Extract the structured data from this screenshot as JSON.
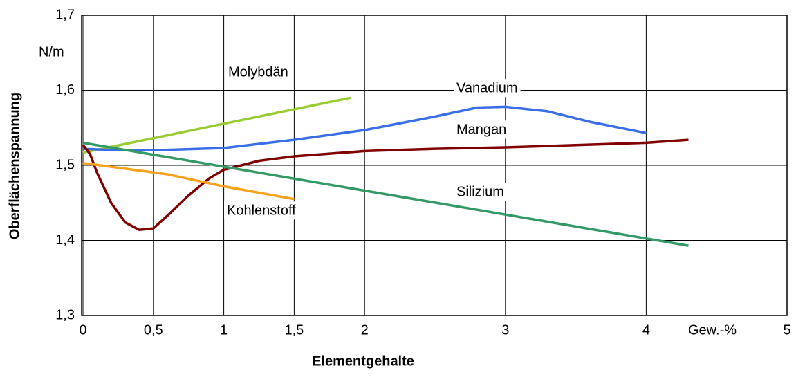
{
  "chart_data": {
    "type": "line",
    "xlabel": "Elementgehalte",
    "ylabel": "Oberflächenspannung",
    "y_unit": "N/m",
    "x_unit": "Gew.-%",
    "xlim": [
      0,
      5
    ],
    "ylim": [
      1.3,
      1.7
    ],
    "xticks": [
      0,
      {
        "value": 0.5,
        "label": "0,5"
      },
      1,
      {
        "value": 1.5,
        "label": "1,5"
      },
      2,
      3,
      4,
      5
    ],
    "yticks": [
      {
        "value": 1.3,
        "label": "1,3"
      },
      {
        "value": 1.4,
        "label": "1,4"
      },
      {
        "value": 1.5,
        "label": "1,5"
      },
      {
        "value": 1.6,
        "label": "1,6"
      },
      {
        "value": 1.7,
        "label": "1,7"
      }
    ],
    "grid": true,
    "series": [
      {
        "name": "Molybdän",
        "color": "#99cc33",
        "x": [
          0,
          1.9
        ],
        "values": [
          1.517,
          1.59
        ]
      },
      {
        "name": "Vanadium",
        "color": "#3a6ee8",
        "x": [
          0,
          0.25,
          0.5,
          1,
          1.5,
          2,
          2.5,
          2.8,
          3,
          3.3,
          3.6,
          4
        ],
        "values": [
          1.522,
          1.52,
          1.52,
          1.523,
          1.534,
          1.547,
          1.565,
          1.577,
          1.578,
          1.572,
          1.558,
          1.543
        ]
      },
      {
        "name": "Mangan",
        "color": "#800000",
        "x": [
          0,
          0.05,
          0.1,
          0.2,
          0.3,
          0.4,
          0.5,
          0.6,
          0.75,
          0.9,
          1,
          1.25,
          1.5,
          2,
          2.5,
          3,
          3.5,
          4,
          4.3
        ],
        "values": [
          1.527,
          1.515,
          1.49,
          1.45,
          1.424,
          1.414,
          1.416,
          1.433,
          1.46,
          1.483,
          1.494,
          1.506,
          1.512,
          1.519,
          1.522,
          1.524,
          1.527,
          1.53,
          1.534
        ]
      },
      {
        "name": "Kohlenstoff",
        "color": "#f7a21b",
        "x": [
          0,
          0.6,
          1,
          1.5
        ],
        "values": [
          1.503,
          1.488,
          1.472,
          1.455
        ]
      },
      {
        "name": "Silizium",
        "color": "#339966",
        "x": [
          0,
          4.3
        ],
        "values": [
          1.53,
          1.393
        ]
      }
    ]
  }
}
